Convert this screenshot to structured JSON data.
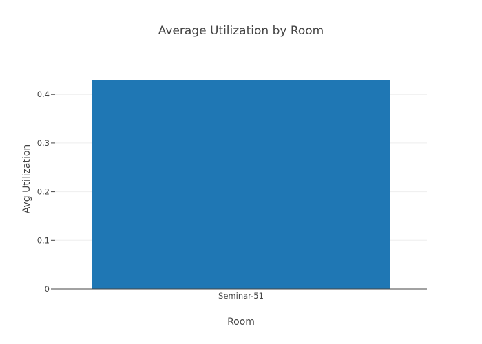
{
  "chart_data": {
    "type": "bar",
    "title": "Average Utilization by Room",
    "xlabel": "Room",
    "ylabel": "Avg Utilization",
    "categories": [
      "Seminar-51"
    ],
    "values": [
      0.43
    ],
    "ylim": [
      0,
      0.43
    ],
    "yticks": [
      0,
      0.1,
      0.2,
      0.3,
      0.4
    ],
    "ytick_labels": [
      "0",
      "0.1",
      "0.2",
      "0.3",
      "0.4"
    ],
    "grid": true,
    "legend": "none",
    "bar_color": "#1f77b4"
  }
}
